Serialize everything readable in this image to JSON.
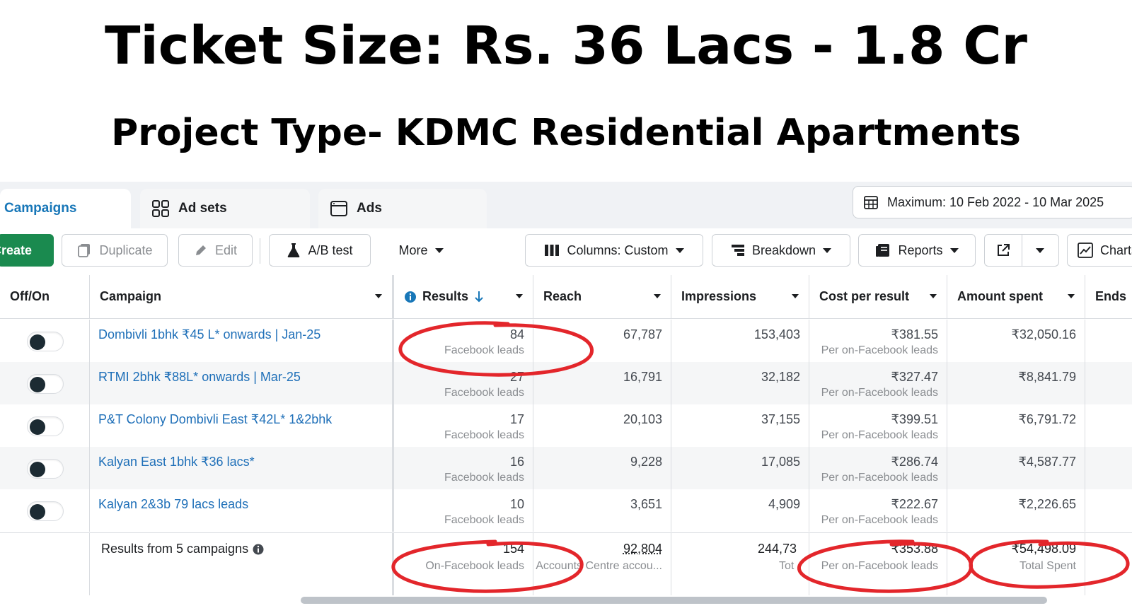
{
  "headline": "Ticket Size: Rs. 36 Lacs - 1.8 Cr",
  "subheadline": "Project Type- KDMC Residential Apartments",
  "tabs": {
    "campaigns": "Campaigns",
    "ad_sets": "Ad sets",
    "ads": "Ads"
  },
  "date_range": "Maximum: 10 Feb 2022 - 10 Mar 2025",
  "toolbar": {
    "create": "Create",
    "duplicate": "Duplicate",
    "edit": "Edit",
    "ab_test": "A/B test",
    "more": "More",
    "columns": "Columns: Custom",
    "breakdown": "Breakdown",
    "reports": "Reports",
    "charts": "Charts"
  },
  "columns": {
    "off_on": "Off/On",
    "campaign": "Campaign",
    "results": "Results",
    "reach": "Reach",
    "impressions": "Impressions",
    "cost_per_result": "Cost per result",
    "amount_spent": "Amount spent",
    "ends": "Ends"
  },
  "rows": [
    {
      "campaign": "Dombivli 1bhk ₹45 L* onwards | Jan-25",
      "results": "84",
      "results_sub": "Facebook leads",
      "reach": "67,787",
      "impressions": "153,403",
      "cost": "₹381.55",
      "cost_sub": "Per on-Facebook leads",
      "spent": "₹32,050.16"
    },
    {
      "campaign": "RTMI 2bhk ₹88L* onwards | Mar-25",
      "results": "27",
      "results_sub": "Facebook leads",
      "reach": "16,791",
      "impressions": "32,182",
      "cost": "₹327.47",
      "cost_sub": "Per on-Facebook leads",
      "spent": "₹8,841.79"
    },
    {
      "campaign": "P&T Colony Dombivli East ₹42L* 1&2bhk",
      "results": "17",
      "results_sub": "Facebook leads",
      "reach": "20,103",
      "impressions": "37,155",
      "cost": "₹399.51",
      "cost_sub": "Per on-Facebook leads",
      "spent": "₹6,791.72"
    },
    {
      "campaign": "Kalyan East 1bhk ₹36 lacs*",
      "results": "16",
      "results_sub": "Facebook leads",
      "reach": "9,228",
      "impressions": "17,085",
      "cost": "₹286.74",
      "cost_sub": "Per on-Facebook leads",
      "spent": "₹4,587.77"
    },
    {
      "campaign": "Kalyan 2&3b 79 lacs leads",
      "results": "10",
      "results_sub": "Facebook leads",
      "reach": "3,651",
      "impressions": "4,909",
      "cost": "₹222.67",
      "cost_sub": "Per on-Facebook leads",
      "spent": "₹2,226.65"
    }
  ],
  "footer": {
    "label": "Results from 5 campaigns",
    "results": "154",
    "results_sub": "On-Facebook leads",
    "reach": "92,804",
    "reach_sub": "Accounts Centre accou...",
    "impressions": "244,73",
    "impressions_sub": "Tot",
    "cost": "₹353.88",
    "cost_sub": "Per on-Facebook leads",
    "spent": "₹54,498.09",
    "spent_sub": "Total Spent"
  },
  "colors": {
    "accent_blue": "#1877b8",
    "create_green": "#1a8a4f",
    "annotation_red": "#e3262b"
  }
}
